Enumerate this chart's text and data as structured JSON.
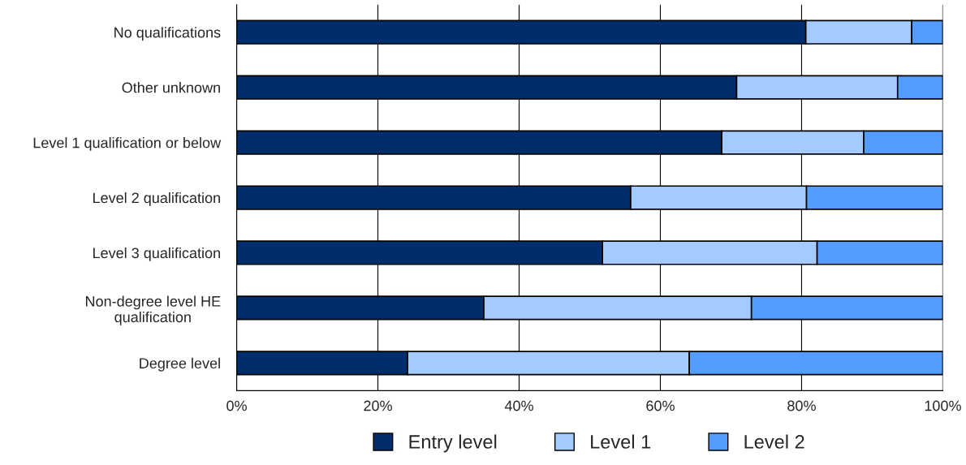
{
  "chart_data": {
    "type": "bar",
    "orientation": "horizontal",
    "stacked": true,
    "categories": [
      "No qualifications",
      "Other unknown",
      "Level 1 qualification or below",
      "Level 2 qualification",
      "Level 3 qualification",
      "Non-degree level HE\nqualification",
      "Degree level"
    ],
    "series": [
      {
        "name": "Entry level",
        "color": "#002d6b",
        "values": [
          80.6,
          70.8,
          68.7,
          55.8,
          51.8,
          35.0,
          24.2
        ]
      },
      {
        "name": "Level 1",
        "color": "#a4cbff",
        "values": [
          15.0,
          22.8,
          20.1,
          24.9,
          30.4,
          37.9,
          39.9
        ]
      },
      {
        "name": "Level 2",
        "color": "#529dff",
        "values": [
          4.4,
          6.4,
          11.2,
          19.3,
          17.8,
          27.1,
          35.9
        ]
      }
    ],
    "xlim": [
      0,
      100
    ],
    "xticks": [
      {
        "value": 0,
        "label": "0%"
      },
      {
        "value": 20,
        "label": "20%"
      },
      {
        "value": 40,
        "label": "40%"
      },
      {
        "value": 60,
        "label": "60%"
      },
      {
        "value": 80,
        "label": "80%"
      },
      {
        "value": 100,
        "label": "100%"
      }
    ],
    "grid": "x",
    "legend": "bottom"
  }
}
